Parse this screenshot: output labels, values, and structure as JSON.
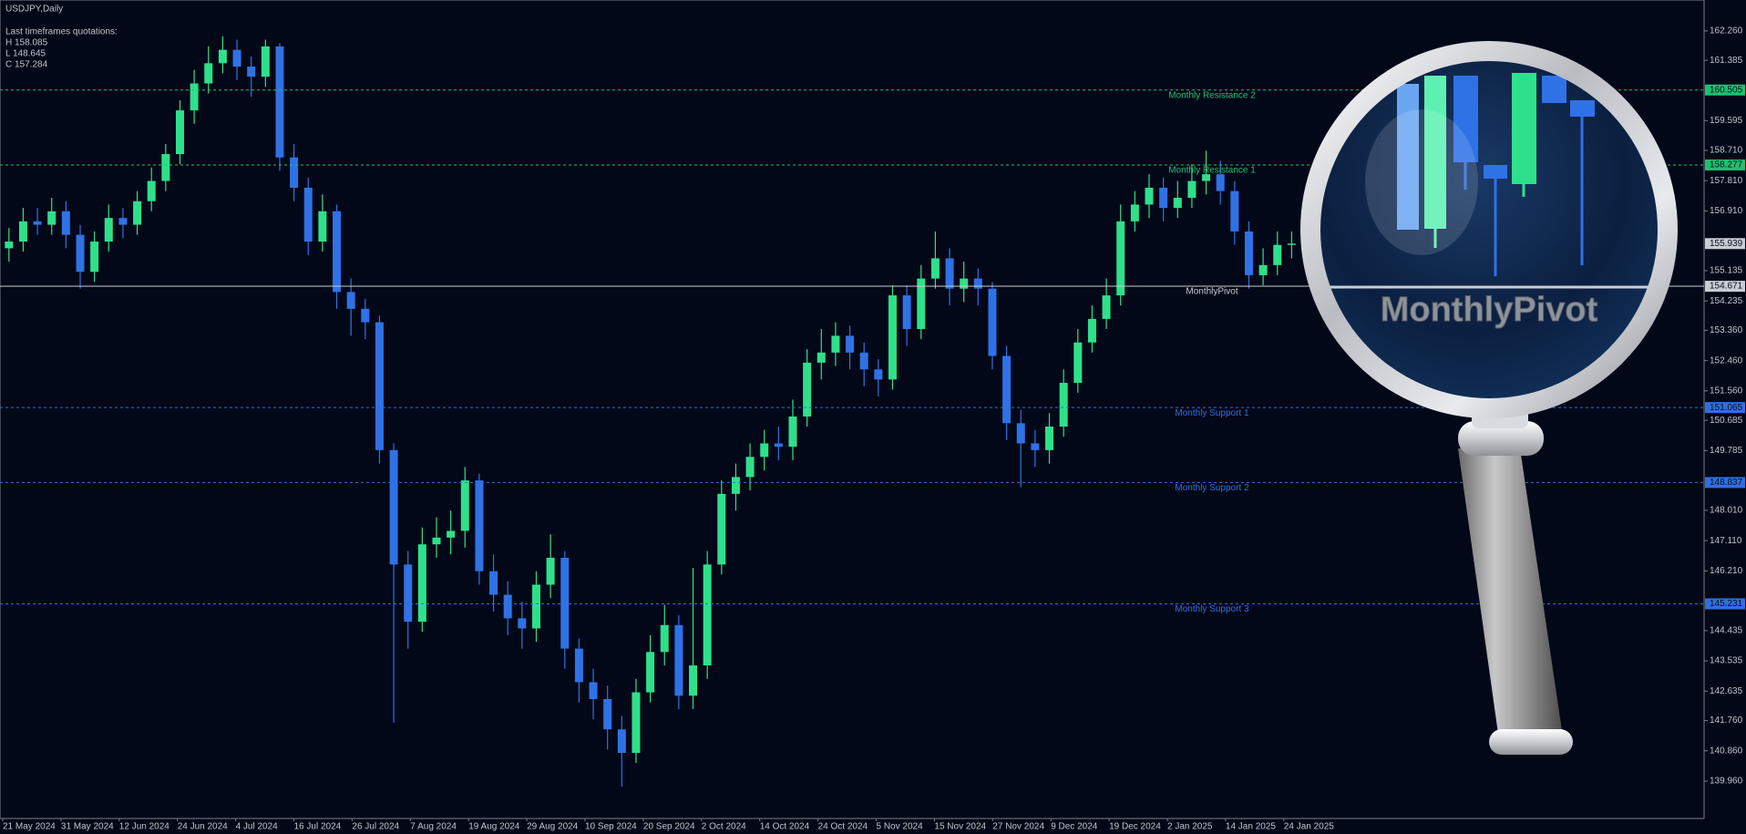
{
  "chart_data": {
    "type": "candlestick",
    "title": "USDJPY,Daily",
    "quotes_title": "Last timeframes quotations:",
    "quotes": [
      "H 158.085",
      "L 148.645",
      "C 157.284"
    ],
    "x_labels": [
      "21 May 2024",
      "31 May 2024",
      "12 Jun 2024",
      "24 Jun 2024",
      "4 Jul 2024",
      "16 Jul 2024",
      "26 Jul 2024",
      "7 Aug 2024",
      "19 Aug 2024",
      "29 Aug 2024",
      "10 Sep 2024",
      "20 Sep 2024",
      "2 Oct 2024",
      "14 Oct 2024",
      "24 Oct 2024",
      "5 Nov 2024",
      "15 Nov 2024",
      "27 Nov 2024",
      "9 Dec 2024",
      "19 Dec 2024",
      "2 Jan 2025",
      "14 Jan 2025",
      "24 Jan 2025"
    ],
    "open": [
      155.8,
      156.0,
      156.6,
      156.5,
      156.9,
      156.2,
      155.1,
      156.0,
      156.7,
      156.5,
      157.2,
      157.8,
      158.6,
      159.9,
      160.7,
      161.3,
      161.7,
      161.2,
      160.9,
      161.8,
      158.5,
      157.6,
      156.0,
      156.9,
      154.5,
      154.0,
      153.6,
      149.8,
      146.4,
      144.7,
      147.0,
      147.2,
      147.4,
      148.9,
      146.2,
      145.5,
      144.8,
      144.5,
      145.8,
      146.6,
      143.9,
      142.9,
      142.4,
      141.5,
      140.8,
      142.6,
      143.8,
      144.6,
      142.5,
      143.4,
      146.4,
      148.5,
      149.0,
      149.6,
      150.0,
      149.9,
      150.8,
      152.4,
      152.7,
      153.2,
      152.7,
      152.2,
      151.9,
      154.4,
      153.4,
      154.9,
      155.5,
      154.6,
      154.9,
      154.6,
      152.6,
      150.6,
      150.0,
      149.8,
      150.5,
      151.8,
      153.0,
      153.7,
      154.4,
      156.6,
      157.1,
      157.6,
      157.0,
      157.3,
      157.8,
      158.0,
      157.5,
      156.3,
      155.0,
      155.3,
      155.9
    ],
    "high": [
      156.4,
      157.0,
      157.0,
      157.3,
      157.2,
      156.5,
      156.3,
      157.1,
      157.0,
      157.5,
      158.2,
      158.9,
      160.2,
      161.1,
      161.8,
      162.1,
      162.0,
      161.5,
      162.0,
      161.9,
      158.9,
      157.9,
      157.4,
      157.1,
      154.9,
      154.3,
      153.8,
      150.0,
      146.8,
      147.5,
      147.8,
      148.0,
      149.3,
      149.1,
      146.7,
      145.9,
      145.3,
      146.2,
      147.3,
      146.8,
      144.2,
      143.3,
      142.8,
      141.9,
      143.0,
      144.3,
      145.2,
      144.9,
      146.3,
      146.8,
      148.9,
      149.4,
      150.0,
      150.4,
      150.5,
      151.3,
      152.8,
      153.4,
      153.6,
      153.5,
      153.0,
      152.5,
      154.7,
      154.7,
      155.3,
      156.3,
      155.8,
      155.4,
      155.2,
      154.8,
      152.9,
      151.0,
      150.4,
      150.9,
      152.2,
      153.4,
      154.1,
      154.9,
      157.1,
      157.5,
      158.0,
      157.9,
      157.8,
      158.3,
      158.7,
      158.4,
      157.8,
      156.6,
      155.8,
      156.3,
      156.3
    ],
    "low": [
      155.4,
      155.7,
      156.2,
      156.2,
      155.8,
      154.6,
      154.8,
      155.7,
      156.1,
      156.2,
      156.9,
      157.5,
      158.3,
      159.5,
      160.4,
      161.0,
      160.8,
      160.3,
      160.6,
      158.1,
      157.2,
      155.6,
      155.7,
      154.0,
      153.2,
      153.1,
      149.4,
      141.7,
      143.9,
      144.4,
      146.6,
      146.7,
      146.9,
      145.8,
      145.0,
      144.3,
      143.9,
      144.1,
      145.4,
      143.3,
      142.3,
      141.8,
      140.9,
      139.8,
      140.5,
      142.3,
      143.4,
      142.1,
      142.1,
      143.0,
      146.1,
      148.0,
      148.6,
      149.2,
      149.5,
      149.5,
      150.5,
      151.9,
      152.3,
      152.2,
      151.7,
      151.4,
      151.6,
      152.9,
      153.1,
      154.6,
      154.1,
      154.2,
      154.1,
      152.2,
      150.1,
      148.7,
      149.3,
      149.4,
      150.2,
      151.5,
      152.7,
      153.4,
      154.1,
      156.3,
      156.7,
      156.6,
      156.7,
      157.0,
      157.4,
      157.1,
      155.9,
      154.6,
      154.7,
      155.0,
      155.5
    ],
    "close": [
      156.0,
      156.6,
      156.5,
      156.9,
      156.2,
      155.1,
      156.0,
      156.7,
      156.5,
      157.2,
      157.8,
      158.6,
      159.9,
      160.7,
      161.3,
      161.7,
      161.2,
      160.9,
      161.8,
      158.5,
      157.6,
      156.0,
      156.9,
      154.5,
      154.0,
      153.6,
      149.8,
      146.4,
      144.7,
      147.0,
      147.2,
      147.4,
      148.9,
      146.2,
      145.5,
      144.8,
      144.5,
      145.8,
      146.6,
      143.9,
      142.9,
      142.4,
      141.5,
      140.8,
      142.6,
      143.8,
      144.6,
      142.5,
      143.4,
      146.4,
      148.5,
      149.0,
      149.6,
      150.0,
      149.9,
      150.8,
      152.4,
      152.7,
      153.2,
      152.7,
      152.2,
      151.9,
      154.4,
      153.4,
      154.9,
      155.5,
      154.6,
      154.9,
      154.6,
      152.6,
      150.6,
      150.0,
      149.8,
      150.5,
      151.8,
      153.0,
      153.7,
      154.4,
      156.6,
      157.1,
      157.6,
      157.0,
      157.3,
      157.8,
      158.0,
      157.5,
      156.3,
      155.0,
      155.3,
      155.9,
      155.939
    ],
    "up_color": "#2fe08a",
    "down_color": "#2f72e6",
    "ylim": [
      138.85,
      163.18
    ],
    "yticks": [
      {
        "value": 162.26,
        "label": "162.260"
      },
      {
        "value": 161.385,
        "label": "161.385"
      },
      {
        "value": 159.595,
        "label": "159.595"
      },
      {
        "value": 158.71,
        "label": "158.710"
      },
      {
        "value": 157.81,
        "label": "157.810"
      },
      {
        "value": 156.91,
        "label": "156.910"
      },
      {
        "value": 155.135,
        "label": "155.135"
      },
      {
        "value": 154.235,
        "label": "154.235"
      },
      {
        "value": 153.36,
        "label": "153.360"
      },
      {
        "value": 152.46,
        "label": "152.460"
      },
      {
        "value": 151.56,
        "label": "151.560"
      },
      {
        "value": 150.685,
        "label": "150.685"
      },
      {
        "value": 149.785,
        "label": "149.785"
      },
      {
        "value": 148.01,
        "label": "148.010"
      },
      {
        "value": 147.11,
        "label": "147.110"
      },
      {
        "value": 146.21,
        "label": "146.210"
      },
      {
        "value": 144.435,
        "label": "144.435"
      },
      {
        "value": 143.535,
        "label": "143.535"
      },
      {
        "value": 142.635,
        "label": "142.635"
      },
      {
        "value": 141.76,
        "label": "141.760"
      },
      {
        "value": 140.86,
        "label": "140.860"
      },
      {
        "value": 139.96,
        "label": "139.960"
      }
    ],
    "levels": [
      {
        "name": "Monthly Resistance 2",
        "value": 160.505,
        "label": "160.505",
        "color": "#1fc070"
      },
      {
        "name": "Monthly Resistance 1",
        "value": 158.277,
        "label": "158.277",
        "color": "#1fc070"
      },
      {
        "name": "MonthlyPivot",
        "value": 154.671,
        "label": "154.671",
        "color": "#c8ccd4"
      },
      {
        "name": "Monthly Support 1",
        "value": 151.065,
        "label": "151.065",
        "color": "#2f6fe0"
      },
      {
        "name": "Monthly Support 2",
        "value": 148.837,
        "label": "148.837",
        "color": "#2f6fe0"
      },
      {
        "name": "Monthly Support 3",
        "value": 145.231,
        "label": "145.231",
        "color": "#2f6fe0"
      }
    ],
    "last_price": {
      "value": 155.939,
      "label": "155.939"
    }
  }
}
